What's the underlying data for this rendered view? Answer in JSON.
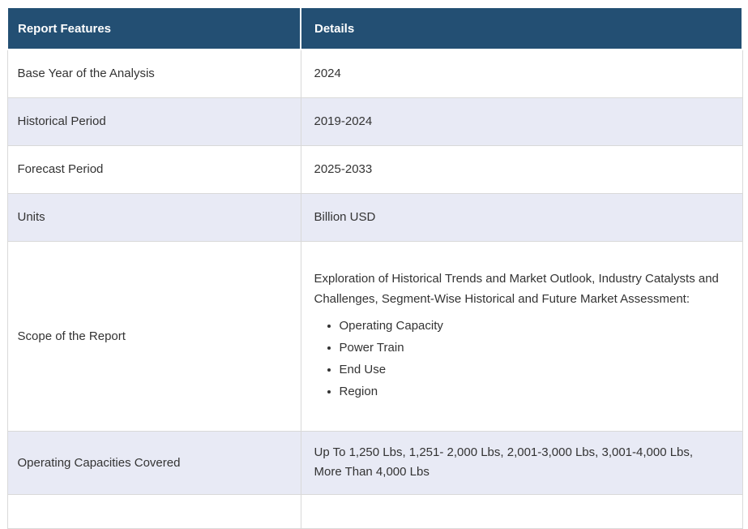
{
  "table": {
    "headers": {
      "feature": "Report Features",
      "detail": "Details"
    },
    "rows": {
      "base_year": {
        "feature": "Base Year of the Analysis",
        "detail": "2024"
      },
      "historical_period": {
        "feature": "Historical Period",
        "detail": "2019-2024"
      },
      "forecast_period": {
        "feature": "Forecast Period",
        "detail": "2025-2033"
      },
      "units": {
        "feature": "Units",
        "detail": "Billion USD"
      },
      "scope": {
        "feature": "Scope of the Report",
        "intro": "Exploration of Historical Trends and Market Outlook, Industry Catalysts and Challenges, Segment-Wise Historical and Future Market Assessment:",
        "bullets": [
          "Operating Capacity",
          "Power Train",
          "End Use",
          "Region"
        ]
      },
      "operating_capacities": {
        "feature": "Operating Capacities Covered",
        "detail": "Up To 1,250 Lbs, 1,251- 2,000 Lbs, 2,001-3,000 Lbs, 3,001-4,000 Lbs, More Than 4,000 Lbs"
      }
    },
    "colors": {
      "header_bg": "#234f73",
      "header_text": "#ffffff",
      "stripe_bg": "#e8eaf5",
      "border": "#d9d9d9",
      "body_text": "#333333"
    }
  }
}
